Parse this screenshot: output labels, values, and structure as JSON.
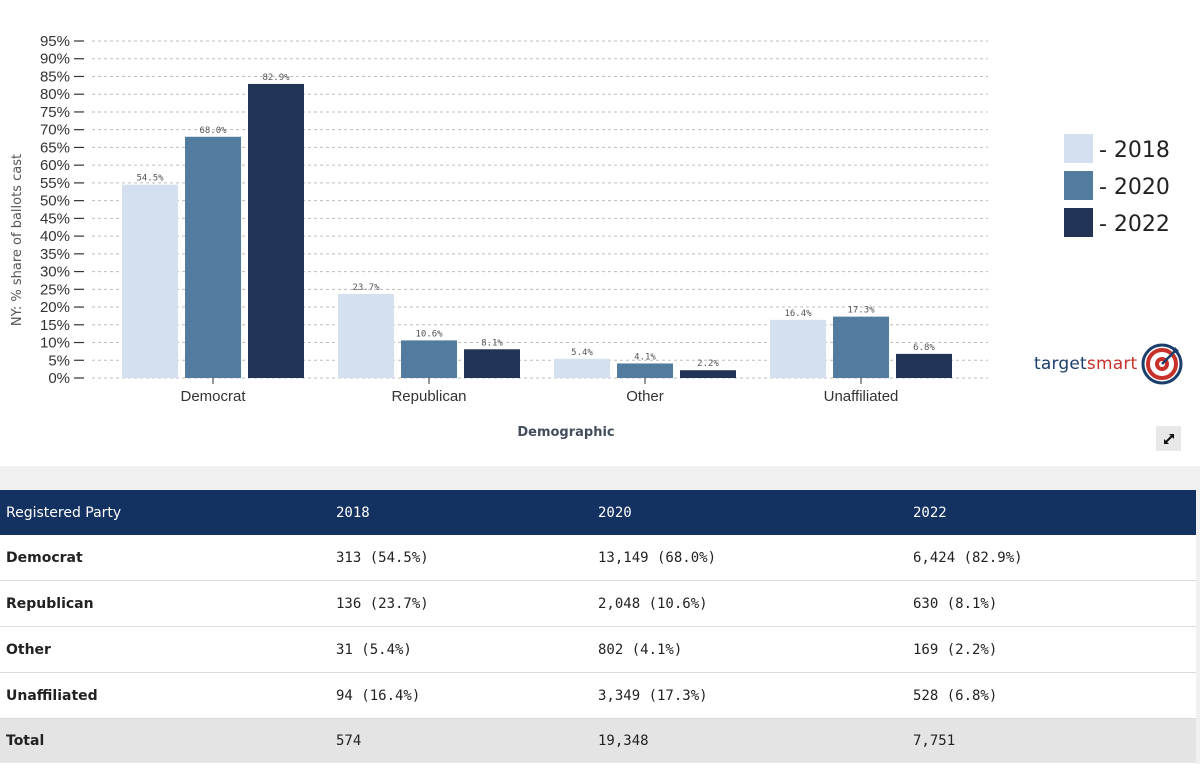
{
  "chart_data": {
    "type": "bar",
    "title": "",
    "xlabel": "Demographic",
    "ylabel": "NY: % share of ballots cast",
    "ylim": [
      0,
      95
    ],
    "yticks": [
      0,
      5,
      10,
      15,
      20,
      25,
      30,
      35,
      40,
      45,
      50,
      55,
      60,
      65,
      70,
      75,
      80,
      85,
      90,
      95
    ],
    "ytick_suffix": "%",
    "grid": "horizontal-dashed",
    "legend_position": "right",
    "categories": [
      "Democrat",
      "Republican",
      "Other",
      "Unaffiliated"
    ],
    "series": [
      {
        "name": "- 2018",
        "color": "#d4dfef",
        "values": [
          54.5,
          23.7,
          5.4,
          16.4
        ],
        "labels": [
          "54.5%",
          "23.7%",
          "5.4%",
          "16.4%"
        ]
      },
      {
        "name": "- 2020",
        "color": "#527ba0",
        "values": [
          68.0,
          10.6,
          4.1,
          17.3
        ],
        "labels": [
          "68.0%",
          "10.6%",
          "4.1%",
          "17.3%"
        ]
      },
      {
        "name": "- 2022",
        "color": "#223455",
        "values": [
          82.9,
          8.1,
          2.2,
          6.8
        ],
        "labels": [
          "82.9%",
          "8.1%",
          "2.2%",
          "6.8%"
        ]
      }
    ]
  },
  "brand": {
    "part1": "target",
    "part2": "smart",
    "icon": "target-bullseye-icon"
  },
  "expand_icon": "expand-icon",
  "table": {
    "headers": [
      "Registered Party",
      "2018",
      "2020",
      "2022"
    ],
    "rows": [
      [
        "Democrat",
        "313 (54.5%)",
        "13,149 (68.0%)",
        "6,424 (82.9%)"
      ],
      [
        "Republican",
        "136 (23.7%)",
        "2,048 (10.6%)",
        "630 (8.1%)"
      ],
      [
        "Other",
        "31 (5.4%)",
        "802 (4.1%)",
        "169 (2.2%)"
      ],
      [
        "Unaffiliated",
        "94 (16.4%)",
        "3,349 (17.3%)",
        "528 (6.8%)"
      ]
    ],
    "total": [
      "Total",
      "574",
      "19,348",
      "7,751"
    ]
  }
}
